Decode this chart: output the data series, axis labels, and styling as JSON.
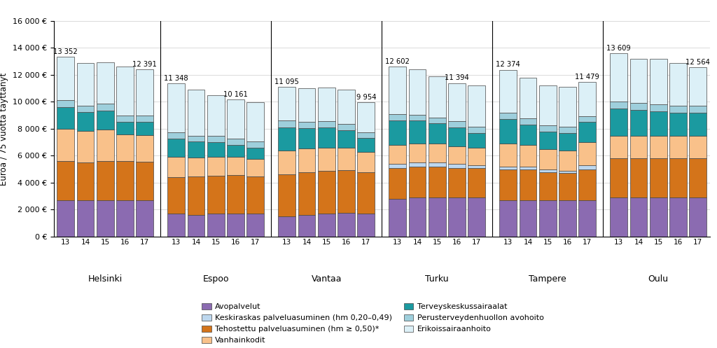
{
  "cities": [
    "Helsinki",
    "Espoo",
    "Vantaa",
    "Turku",
    "Tampere",
    "Oulu"
  ],
  "years": [
    "13",
    "14",
    "15",
    "16",
    "17"
  ],
  "segments": {
    "Helsinki": {
      "Avopalvelut": [
        2700,
        2700,
        2700,
        2700,
        2700
      ],
      "Tehostettu": [
        2900,
        2800,
        2900,
        2900,
        2850
      ],
      "Keskiraskas": [
        0,
        0,
        0,
        0,
        0
      ],
      "Vanhainkodit": [
        2400,
        2350,
        2350,
        2000,
        2000
      ],
      "Terveyskeskus": [
        1600,
        1400,
        1400,
        900,
        950
      ],
      "Perusterveys": [
        500,
        450,
        500,
        500,
        500
      ],
      "Erikoissairaanhoito": [
        3252,
        3200,
        3100,
        3600,
        3391
      ]
    },
    "Espoo": {
      "Avopalvelut": [
        1700,
        1600,
        1700,
        1700,
        1700
      ],
      "Tehostettu": [
        2700,
        2850,
        2800,
        2850,
        2750
      ],
      "Keskiraskas": [
        0,
        0,
        0,
        0,
        0
      ],
      "Vanhainkodit": [
        1500,
        1400,
        1400,
        1350,
        1300
      ],
      "Terveyskeskus": [
        1350,
        1200,
        1100,
        900,
        850
      ],
      "Perusterveys": [
        500,
        450,
        450,
        450,
        450
      ],
      "Erikoissairaanhoito": [
        3598,
        3400,
        3050,
        2911,
        2904
      ]
    },
    "Vantaa": {
      "Avopalvelut": [
        1500,
        1600,
        1700,
        1750,
        1700
      ],
      "Tehostettu": [
        3100,
        3200,
        3200,
        3200,
        3100
      ],
      "Keskiraskas": [
        0,
        0,
        0,
        0,
        0
      ],
      "Vanhainkodit": [
        1800,
        1750,
        1700,
        1650,
        1500
      ],
      "Terveyskeskus": [
        1700,
        1500,
        1500,
        1300,
        1000
      ],
      "Perusterveys": [
        500,
        450,
        450,
        450,
        450
      ],
      "Erikoissairaanhoito": [
        2495,
        2500,
        2500,
        2550,
        2204
      ]
    },
    "Turku": {
      "Avopalvelut": [
        2800,
        2900,
        2900,
        2900,
        2900
      ],
      "Tehostettu": [
        2300,
        2300,
        2300,
        2200,
        2200
      ],
      "Keskiraskas": [
        300,
        300,
        300,
        300,
        200
      ],
      "Vanhainkodit": [
        1400,
        1400,
        1400,
        1300,
        1300
      ],
      "Terveyskeskus": [
        1800,
        1700,
        1500,
        1400,
        1100
      ],
      "Perusterveys": [
        500,
        450,
        450,
        450,
        450
      ],
      "Erikoissairaanhoito": [
        3502,
        3350,
        3050,
        2844,
        3050
      ]
    },
    "Tampere": {
      "Avopalvelut": [
        2700,
        2700,
        2700,
        2700,
        2700
      ],
      "Tehostettu": [
        2300,
        2300,
        2100,
        2000,
        2300
      ],
      "Keskiraskas": [
        200,
        200,
        200,
        200,
        300
      ],
      "Vanhainkodit": [
        1700,
        1600,
        1500,
        1500,
        1700
      ],
      "Terveyskeskus": [
        1800,
        1500,
        1300,
        1300,
        1500
      ],
      "Perusterveys": [
        500,
        450,
        450,
        450,
        450
      ],
      "Erikoissairaanhoito": [
        3174,
        3050,
        2950,
        2950,
        2529
      ]
    },
    "Oulu": {
      "Avopalvelut": [
        2900,
        2900,
        2900,
        2900,
        2900
      ],
      "Tehostettu": [
        2900,
        2900,
        2900,
        2900,
        2900
      ],
      "Keskiraskas": [
        0,
        0,
        0,
        0,
        0
      ],
      "Vanhainkodit": [
        1700,
        1700,
        1700,
        1700,
        1700
      ],
      "Terveyskeskus": [
        2000,
        1900,
        1800,
        1700,
        1700
      ],
      "Perusterveys": [
        500,
        500,
        500,
        500,
        500
      ],
      "Erikoissairaanhoito": [
        3609,
        3300,
        3400,
        3200,
        2864
      ]
    }
  },
  "label_config": {
    "Helsinki": [
      [
        0,
        "13 352"
      ],
      [
        4,
        "12 391"
      ]
    ],
    "Espoo": [
      [
        0,
        "11 348"
      ],
      [
        3,
        "10 161"
      ]
    ],
    "Vantaa": [
      [
        0,
        "11 095"
      ],
      [
        4,
        "9 954"
      ]
    ],
    "Turku": [
      [
        0,
        "12 602"
      ],
      [
        3,
        "11 394"
      ]
    ],
    "Tampere": [
      [
        0,
        "12 374"
      ],
      [
        4,
        "11 479"
      ]
    ],
    "Oulu": [
      [
        0,
        "13 609"
      ],
      [
        4,
        "12 564"
      ]
    ]
  },
  "colors": {
    "Avopalvelut": "#8B6BB1",
    "Tehostettu": "#D4741A",
    "Keskiraskas": "#BDD7EE",
    "Vanhainkodit": "#F9C18A",
    "Terveyskeskus": "#1B9AA0",
    "Perusterveys": "#9ECFDC",
    "Erikoissairaanhoito": "#DCF0F7"
  },
  "legend_labels": {
    "Avopalvelut": "Avopalvelut",
    "Keskiraskas": "Keskiraskas palveluasuminen (hm 0,20–0,49)",
    "Tehostettu": "Tehostettu palveluasuminen (hm ≥ 0,50)*",
    "Vanhainkodit": "Vanhainkodit",
    "Terveyskeskus": "Terveyskeskussairaalat",
    "Perusterveys": "Perusterveydenhuollon avohoito",
    "Erikoissairaanhoito": "Erikoissairaanhoito"
  },
  "ylabel": "Euroa / 75 vuotta täyttänyt",
  "ylim": [
    0,
    16000
  ],
  "yticks": [
    0,
    2000,
    4000,
    6000,
    8000,
    10000,
    12000,
    14000,
    16000
  ],
  "background_color": "#FFFFFF"
}
